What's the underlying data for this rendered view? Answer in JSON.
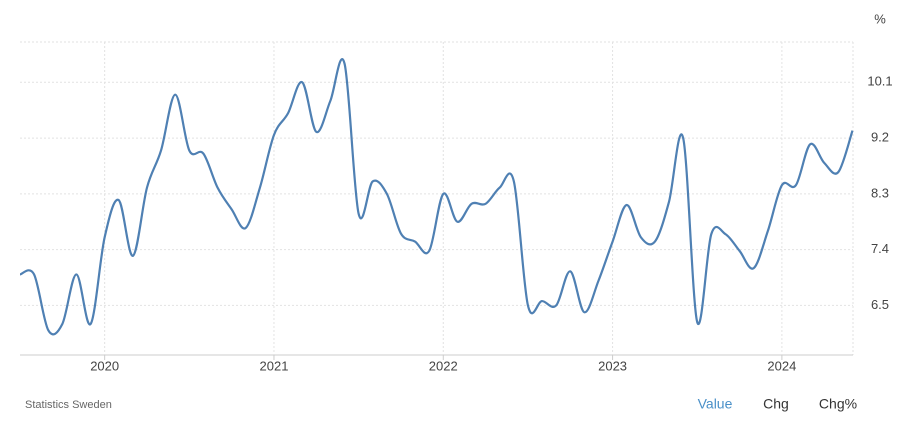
{
  "chart_data": {
    "type": "line",
    "unit": "%",
    "source": "Statistics Sweden",
    "buttons": [
      "Value",
      "Chg",
      "Chg%"
    ],
    "x": [
      2019.5,
      2019.583,
      2019.667,
      2019.75,
      2019.833,
      2019.917,
      2020.0,
      2020.083,
      2020.167,
      2020.25,
      2020.333,
      2020.417,
      2020.5,
      2020.583,
      2020.667,
      2020.75,
      2020.833,
      2020.917,
      2021.0,
      2021.083,
      2021.167,
      2021.25,
      2021.333,
      2021.417,
      2021.5,
      2021.583,
      2021.667,
      2021.75,
      2021.833,
      2021.917,
      2022.0,
      2022.083,
      2022.167,
      2022.25,
      2022.333,
      2022.417,
      2022.5,
      2022.583,
      2022.667,
      2022.75,
      2022.833,
      2022.917,
      2023.0,
      2023.083,
      2023.167,
      2023.25,
      2023.333,
      2023.417,
      2023.5,
      2023.583,
      2023.667,
      2023.75,
      2023.833,
      2023.917,
      2024.0,
      2024.083,
      2024.167,
      2024.25,
      2024.333,
      2024.417
    ],
    "series": [
      {
        "name": "Value",
        "color": "#4f80b3",
        "values": [
          7.0,
          7.0,
          6.1,
          6.2,
          7.0,
          6.2,
          7.6,
          8.2,
          7.3,
          8.4,
          9.0,
          9.9,
          9.0,
          8.95,
          8.4,
          8.05,
          7.75,
          8.4,
          9.25,
          9.6,
          10.1,
          9.3,
          9.8,
          10.4,
          7.98,
          8.5,
          8.3,
          7.66,
          7.53,
          7.38,
          8.3,
          7.85,
          8.14,
          8.14,
          8.4,
          8.5,
          6.5,
          6.57,
          6.5,
          7.05,
          6.39,
          6.9,
          7.53,
          8.12,
          7.6,
          7.53,
          8.17,
          9.2,
          6.23,
          7.65,
          7.65,
          7.38,
          7.1,
          7.7,
          8.44,
          8.44,
          9.1,
          8.8,
          8.65,
          9.32
        ]
      }
    ],
    "xlim": [
      2019.5,
      2024.42
    ],
    "xticks": [
      2020,
      2021,
      2022,
      2023,
      2024
    ],
    "ylim": [
      5.7,
      10.75
    ],
    "yticks": [
      6.5,
      7.4,
      8.3,
      9.2,
      10.1
    ],
    "grid": true
  }
}
